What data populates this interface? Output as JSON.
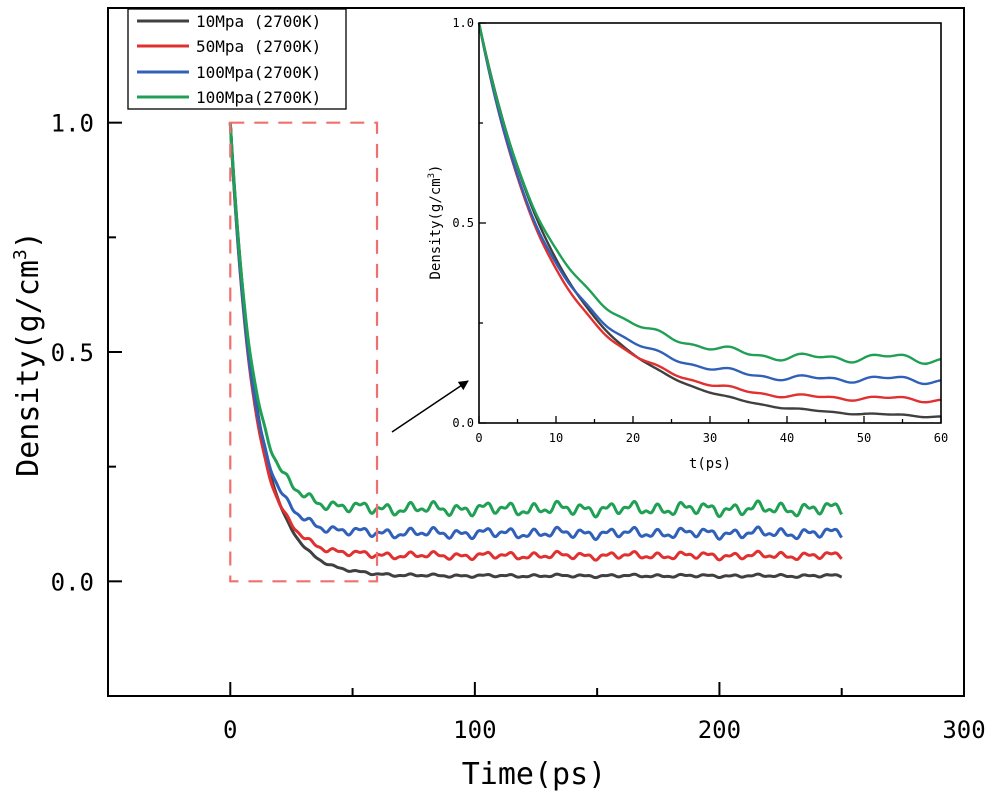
{
  "chart_data": {
    "type": "line",
    "title": "",
    "xlabel": "Time(ps)",
    "ylabel": "Density(g/cm3)",
    "ylabel_base": "Density(g/cm",
    "ylabel_sup": "3",
    "ylabel_close": ")",
    "xlim": [
      -50,
      300
    ],
    "ylim": [
      -0.25,
      1.25
    ],
    "xticks": [
      0,
      100,
      200,
      300
    ],
    "xtick_labels": [
      "0",
      "100",
      "200",
      "300"
    ],
    "yticks": [
      0.0,
      0.5,
      1.0
    ],
    "ytick_labels": [
      "0.0",
      "0.5",
      "1.0"
    ],
    "legend_position": "top-left",
    "series": [
      {
        "name": "10Mpa (2700K)",
        "color": "#404040",
        "plateau": 0.012,
        "tau": 11.0,
        "wiggle": 0.002,
        "t_end": 250
      },
      {
        "name": "50Mpa (2700K)",
        "color": "#e03030",
        "plateau": 0.056,
        "tau": 9.5,
        "wiggle": 0.005,
        "t_end": 250
      },
      {
        "name": "100Mpa(2700K)",
        "color": "#3060b8",
        "plateau": 0.105,
        "tau": 9.0,
        "wiggle": 0.007,
        "t_end": 250
      },
      {
        "name": "100Mpa(2700K)",
        "color": "#20a055",
        "plateau": 0.158,
        "tau": 9.0,
        "wiggle": 0.009,
        "t_end": 250
      }
    ],
    "zoom_box": {
      "x": [
        0,
        60
      ],
      "y": [
        0.0,
        1.0
      ],
      "color": "#f07070"
    },
    "inset": {
      "xlabel": "t(ps)",
      "ylabel": "Density(g/cm3)",
      "ylabel_base": "Density(g/cm",
      "ylabel_sup": "3",
      "ylabel_close": ")",
      "xlim": [
        0,
        60
      ],
      "ylim": [
        0,
        1.0
      ],
      "xticks": [
        0,
        10,
        20,
        30,
        40,
        50,
        60
      ],
      "xtick_labels": [
        "0",
        "10",
        "20",
        "30",
        "40",
        "50",
        "60"
      ],
      "yticks": [
        0.0,
        0.5,
        1.0
      ],
      "ytick_labels": [
        "0.0",
        "0.5",
        "1.0"
      ]
    }
  }
}
